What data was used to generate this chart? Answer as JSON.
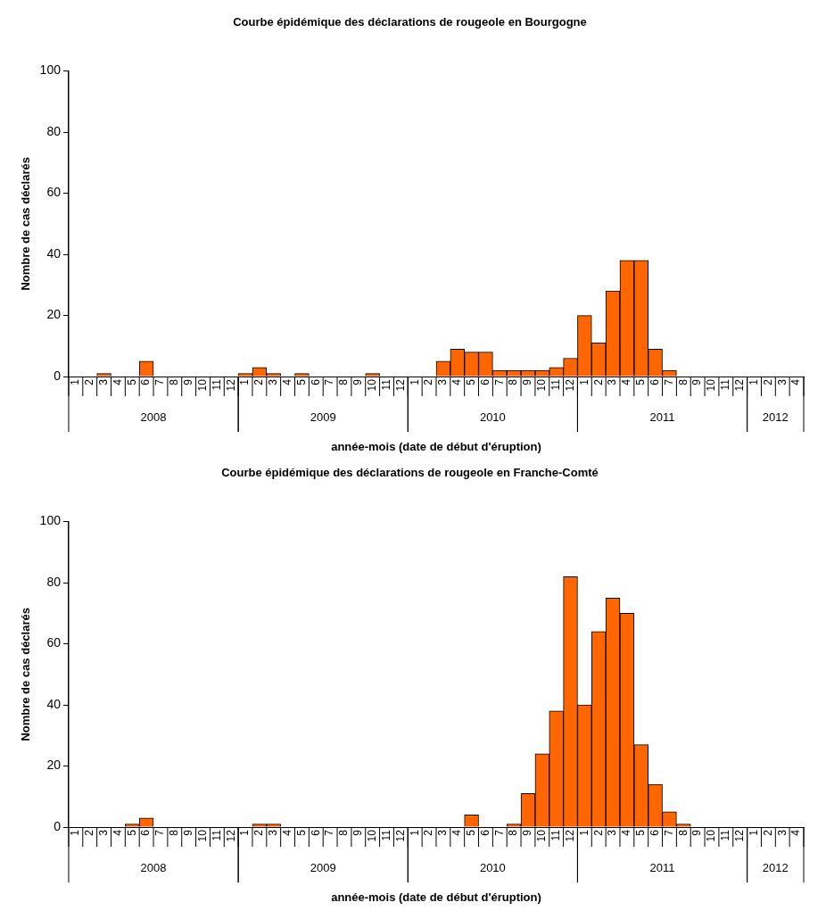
{
  "chart_data": [
    {
      "type": "bar",
      "title": "Courbe épidémique des déclarations de rougeole en Bourgogne",
      "xlabel": "année-mois (date de début d'éruption)",
      "ylabel": "Nombre de cas déclarés",
      "categories": [
        "1",
        "2",
        "3",
        "4",
        "5",
        "6",
        "7",
        "8",
        "9",
        "10",
        "11",
        "12",
        "1",
        "2",
        "3",
        "4",
        "5",
        "6",
        "7",
        "8",
        "9",
        "10",
        "11",
        "12",
        "1",
        "2",
        "3",
        "4",
        "5",
        "6",
        "7",
        "8",
        "9",
        "10",
        "11",
        "12",
        "1",
        "2",
        "3",
        "4",
        "5",
        "6",
        "7",
        "8",
        "9",
        "10",
        "11",
        "12",
        "1",
        "2",
        "3",
        "4"
      ],
      "annotations": [
        "2008",
        "2009",
        "2010",
        "2011",
        "2012"
      ],
      "values": [
        0,
        0,
        1,
        0,
        0,
        5,
        0,
        0,
        0,
        0,
        0,
        0,
        1,
        3,
        1,
        0,
        1,
        0,
        0,
        0,
        0,
        1,
        0,
        0,
        0,
        0,
        5,
        9,
        8,
        8,
        2,
        2,
        2,
        2,
        3,
        6,
        20,
        11,
        28,
        38,
        38,
        9,
        2,
        0,
        0,
        0,
        0,
        0,
        0,
        0,
        0,
        0
      ],
      "color": "#ff6600",
      "ylim": [
        0,
        100
      ],
      "yticks": [
        0,
        20,
        40,
        60,
        80,
        100
      ]
    },
    {
      "type": "bar",
      "title": "Courbe épidémique des déclarations de rougeole en Franche-Comté",
      "xlabel": "année-mois (date de début d'éruption)",
      "ylabel": "Nombre de cas déclarés",
      "categories": [
        "1",
        "2",
        "3",
        "4",
        "5",
        "6",
        "7",
        "8",
        "9",
        "10",
        "11",
        "12",
        "1",
        "2",
        "3",
        "4",
        "5",
        "6",
        "7",
        "8",
        "9",
        "10",
        "11",
        "12",
        "1",
        "2",
        "3",
        "4",
        "5",
        "6",
        "7",
        "8",
        "9",
        "10",
        "11",
        "12",
        "1",
        "2",
        "3",
        "4",
        "5",
        "6",
        "7",
        "8",
        "9",
        "10",
        "11",
        "12",
        "1",
        "2",
        "3",
        "4"
      ],
      "annotations": [
        "2008",
        "2009",
        "2010",
        "2011",
        "2012"
      ],
      "values": [
        0,
        0,
        0,
        0,
        1,
        3,
        0,
        0,
        0,
        0,
        0,
        0,
        0,
        1,
        1,
        0,
        0,
        0,
        0,
        0,
        0,
        0,
        0,
        0,
        0,
        0,
        0,
        0,
        4,
        0,
        0,
        1,
        11,
        24,
        38,
        82,
        40,
        64,
        75,
        70,
        27,
        14,
        5,
        1,
        0,
        0,
        0,
        0,
        0,
        0,
        0,
        0
      ],
      "color": "#ff6600",
      "ylim": [
        0,
        100
      ],
      "yticks": [
        0,
        20,
        40,
        60,
        80,
        100
      ]
    }
  ]
}
